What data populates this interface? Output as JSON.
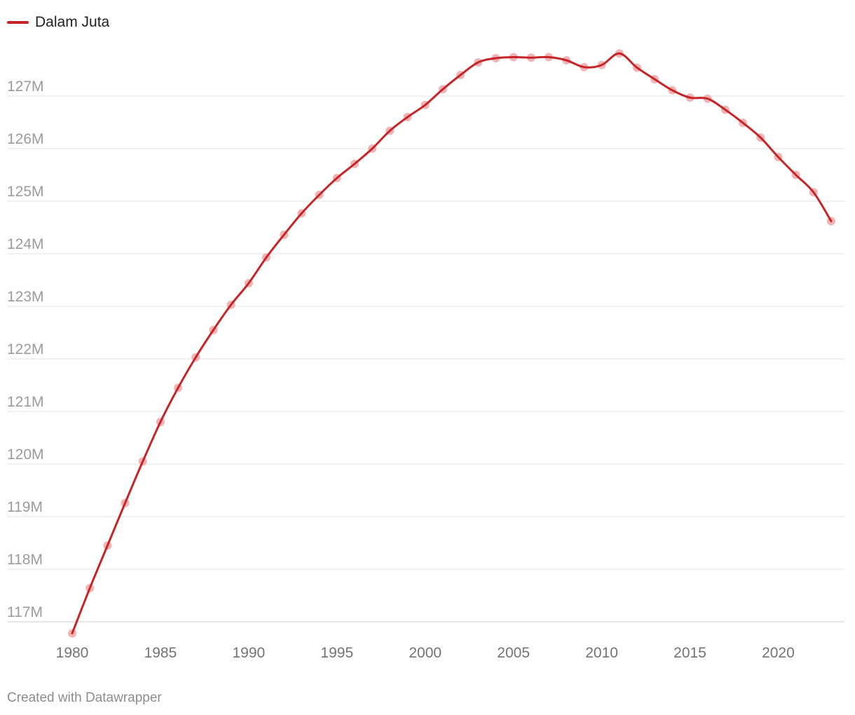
{
  "colors": {
    "series": "#c62426",
    "points": "#f0a6a8",
    "grid": "#e3e3e3",
    "axis": "#cccccc"
  },
  "legend": {
    "label": "Dalam Juta"
  },
  "credit": "Created with Datawrapper",
  "chart_data": {
    "type": "line",
    "title": "",
    "xlabel": "",
    "ylabel": "",
    "legend_position": "top-left",
    "grid": true,
    "xlim": [
      1980,
      2023
    ],
    "ylim": [
      116.5,
      128
    ],
    "x_ticks": [
      1980,
      1985,
      1990,
      1995,
      2000,
      2005,
      2010,
      2015,
      2020
    ],
    "x_tick_labels": [
      "1980",
      "1985",
      "1990",
      "1995",
      "2000",
      "2005",
      "2010",
      "2015",
      "2020"
    ],
    "y_ticks": [
      117,
      118,
      119,
      120,
      121,
      122,
      123,
      124,
      125,
      126,
      127
    ],
    "y_tick_labels": [
      "117M",
      "118M",
      "119M",
      "120M",
      "121M",
      "122M",
      "123M",
      "124M",
      "125M",
      "126M",
      "127M"
    ],
    "series": [
      {
        "name": "Dalam Juta",
        "x": [
          1980,
          1981,
          1982,
          1983,
          1984,
          1985,
          1986,
          1987,
          1988,
          1989,
          1990,
          1991,
          1992,
          1993,
          1994,
          1995,
          1996,
          1997,
          1998,
          1999,
          2000,
          2001,
          2002,
          2003,
          2004,
          2005,
          2006,
          2007,
          2008,
          2009,
          2010,
          2011,
          2012,
          2013,
          2014,
          2015,
          2016,
          2017,
          2018,
          2019,
          2020,
          2021,
          2022,
          2023
        ],
        "values": [
          116.78,
          117.64,
          118.45,
          119.26,
          120.05,
          120.8,
          121.45,
          122.03,
          122.55,
          123.03,
          123.44,
          123.93,
          124.36,
          124.77,
          125.12,
          125.44,
          125.71,
          126.0,
          126.34,
          126.6,
          126.83,
          127.13,
          127.4,
          127.64,
          127.72,
          127.74,
          127.73,
          127.74,
          127.68,
          127.55,
          127.59,
          127.81,
          127.54,
          127.32,
          127.11,
          126.97,
          126.95,
          126.74,
          126.49,
          126.21,
          125.84,
          125.5,
          125.17,
          124.62
        ]
      }
    ]
  }
}
